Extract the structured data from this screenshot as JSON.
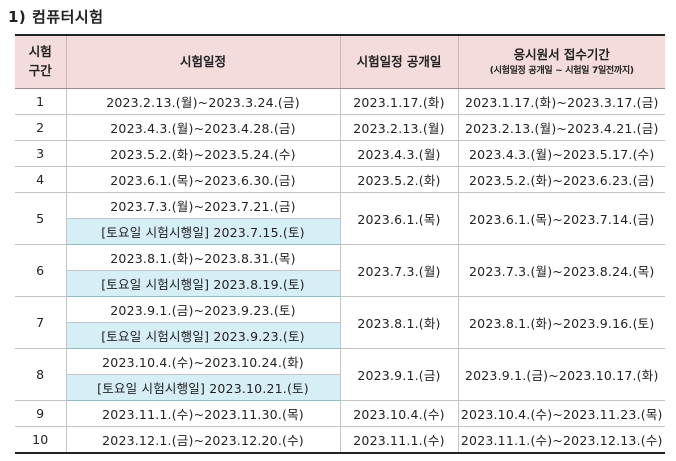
{
  "heading": "1) 컴퓨터시험",
  "table": {
    "headers": {
      "col1_line1": "시험",
      "col1_line2": "구간",
      "col2": "시험일정",
      "col3": "시험일정 공개일",
      "col4_line1": "응시원서 접수기간",
      "col4_line2": "(시험일정 공개일 ~ 시험일 7일전까지)"
    },
    "rows": [
      {
        "section": "1",
        "schedule": "2023.2.13.(월)~2023.3.24.(금)",
        "open": "2023.1.17.(화)",
        "apply": "2023.1.17.(화)~2023.3.17.(금)"
      },
      {
        "section": "2",
        "schedule": "2023.4.3.(월)~2023.4.28.(금)",
        "open": "2023.2.13.(월)",
        "apply": "2023.2.13.(월)~2023.4.21.(금)"
      },
      {
        "section": "3",
        "schedule": "2023.5.2.(화)~2023.5.24.(수)",
        "open": "2023.4.3.(월)",
        "apply": "2023.4.3.(월)~2023.5.17.(수)"
      },
      {
        "section": "4",
        "schedule": "2023.6.1.(목)~2023.6.30.(금)",
        "open": "2023.5.2.(화)",
        "apply": "2023.5.2.(화)~2023.6.23.(금)"
      },
      {
        "section": "5",
        "schedule": "2023.7.3.(월)~2023.7.21.(금)",
        "saturday": "[토요일 시험시행일] 2023.7.15.(토)",
        "open": "2023.6.1.(목)",
        "apply": "2023.6.1.(목)~2023.7.14.(금)"
      },
      {
        "section": "6",
        "schedule": "2023.8.1.(화)~2023.8.31.(목)",
        "saturday": "[토요일 시험시행일] 2023.8.19.(토)",
        "open": "2023.7.3.(월)",
        "apply": "2023.7.3.(월)~2023.8.24.(목)"
      },
      {
        "section": "7",
        "schedule": "2023.9.1.(금)~2023.9.23.(토)",
        "saturday": "[토요일 시험시행일] 2023.9.23.(토)",
        "open": "2023.8.1.(화)",
        "apply": "2023.8.1.(화)~2023.9.16.(토)"
      },
      {
        "section": "8",
        "schedule": "2023.10.4.(수)~2023.10.24.(화)",
        "saturday": "[토요일 시험시행일] 2023.10.21.(토)",
        "open": "2023.9.1.(금)",
        "apply": "2023.9.1.(금)~2023.10.17.(화)"
      },
      {
        "section": "9",
        "schedule": "2023.11.1.(수)~2023.11.30.(목)",
        "open": "2023.10.4.(수)",
        "apply": "2023.10.4.(수)~2023.11.23.(목)"
      },
      {
        "section": "10",
        "schedule": "2023.12.1.(금)~2023.12.20.(수)",
        "open": "2023.11.1.(수)",
        "apply": "2023.11.1.(수)~2023.12.13.(수)"
      }
    ]
  }
}
